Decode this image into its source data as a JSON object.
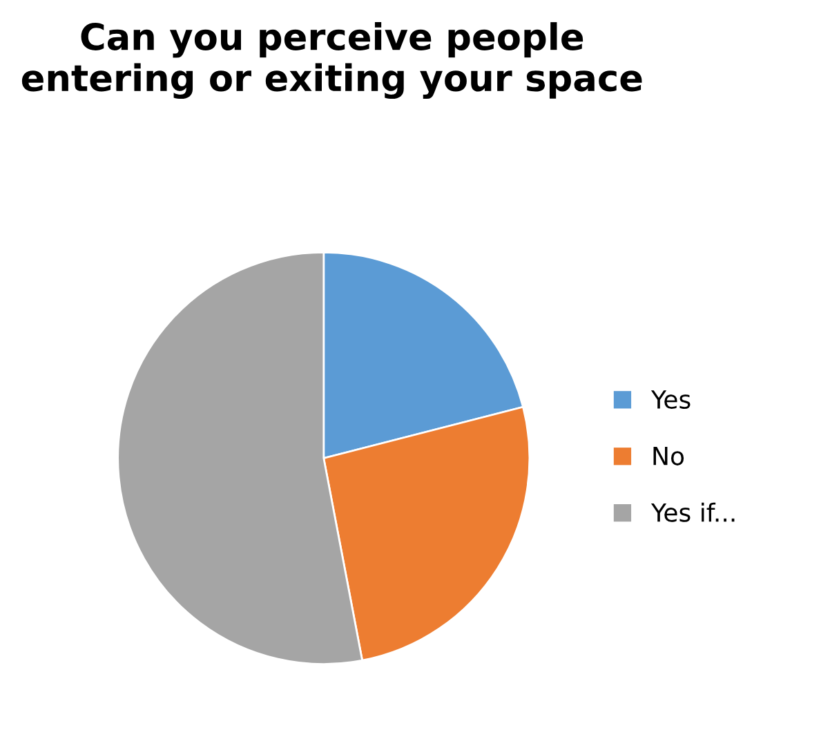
{
  "chart_data": {
    "type": "pie",
    "title": "Can you perceive people entering or exiting your space",
    "categories": [
      "Yes",
      "No",
      "Yes if..."
    ],
    "values": [
      21,
      26,
      53
    ],
    "colors": [
      "#5b9bd5",
      "#ed7d31",
      "#a5a5a5"
    ],
    "legend": "right"
  }
}
